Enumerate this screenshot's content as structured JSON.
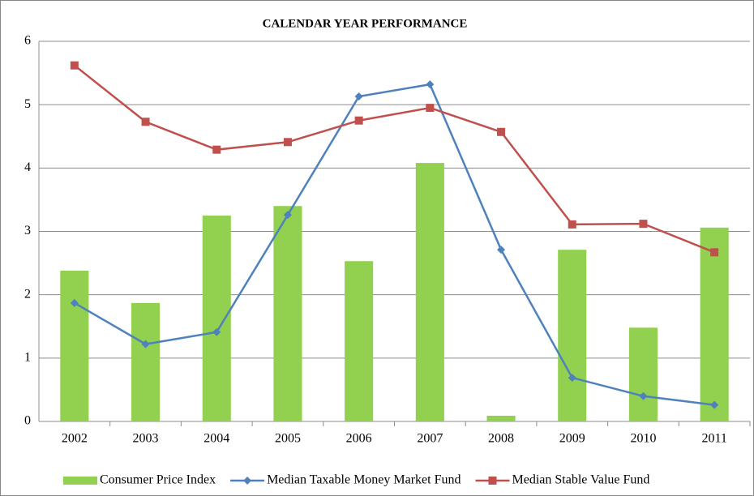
{
  "chart_data": {
    "type": "combo",
    "title": "CALENDAR YEAR PERFORMANCE",
    "categories": [
      "2002",
      "2003",
      "2004",
      "2005",
      "2006",
      "2007",
      "2008",
      "2009",
      "2010",
      "2011"
    ],
    "series": [
      {
        "name": "Consumer Price Index",
        "type": "bar",
        "color": "#92d050",
        "values": [
          2.38,
          1.87,
          3.25,
          3.4,
          2.53,
          4.08,
          0.09,
          2.71,
          1.48,
          3.06
        ]
      },
      {
        "name": "Median Taxable Money Market Fund",
        "type": "line",
        "marker": "diamond",
        "color": "#4f81bd",
        "values": [
          1.87,
          1.22,
          1.41,
          3.26,
          5.13,
          5.32,
          2.71,
          0.69,
          0.4,
          0.26
        ]
      },
      {
        "name": "Median Stable Value Fund",
        "type": "line",
        "marker": "square",
        "color": "#c0504d",
        "values": [
          5.62,
          4.73,
          4.29,
          4.41,
          4.75,
          4.95,
          4.57,
          3.11,
          3.12,
          2.67
        ]
      }
    ],
    "ylim": [
      0,
      6
    ],
    "yticks": [
      0,
      1,
      2,
      3,
      4,
      5,
      6
    ],
    "grid": true,
    "legend": "bottom"
  }
}
